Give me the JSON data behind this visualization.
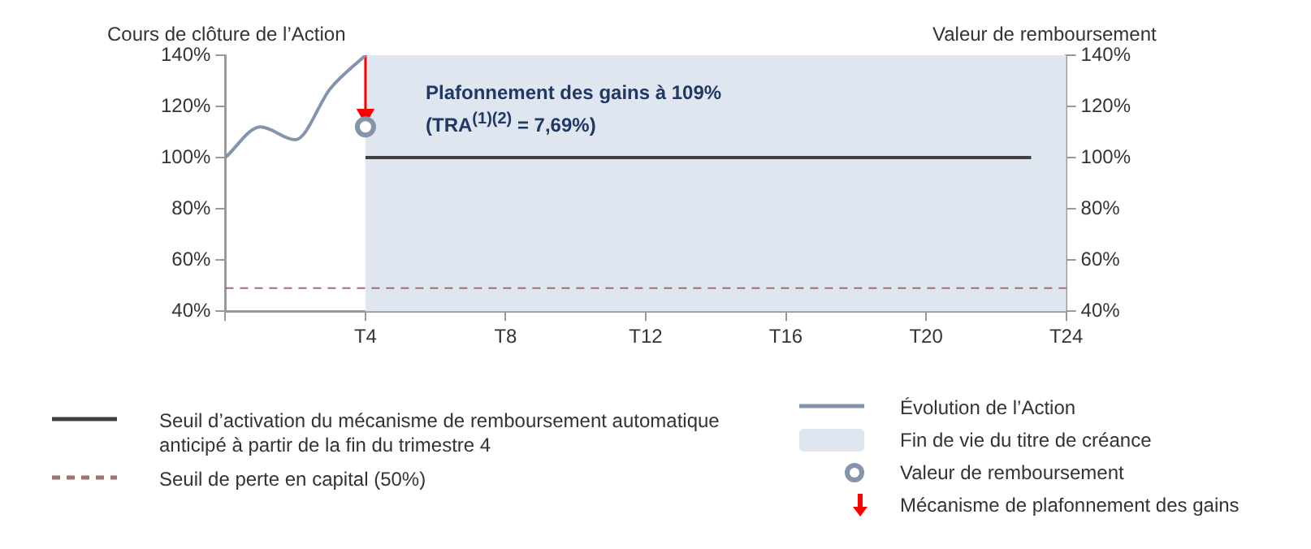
{
  "chart_data": {
    "type": "line",
    "ylabel": "Cours de clôture de l’Action",
    "y2label": "Valeur de remboursement",
    "annotations": [
      "Plafonnement des gains à 109%",
      "(TRA$^{(1)(2)}$ = 7,69%)"
    ],
    "categories": [
      null,
      null,
      null,
      null,
      "T4",
      null,
      null,
      null,
      "T8",
      null,
      null,
      null,
      "T12",
      null,
      null,
      null,
      "T16",
      null,
      null,
      null,
      "T20",
      null,
      null,
      null,
      "T24"
    ],
    "ylim": [
      40,
      140
    ],
    "yticks": [
      {
        "value": 40,
        "label": "40%"
      },
      {
        "value": 60,
        "label": "60%"
      },
      {
        "value": 80,
        "label": "80%"
      },
      {
        "value": 100,
        "label": "100%"
      },
      {
        "value": 120,
        "label": "120%"
      },
      {
        "value": 140,
        "label": "140%"
      }
    ],
    "y2lim": [
      40,
      140
    ],
    "y2ticks": [
      {
        "value": 40,
        "label": "40%"
      },
      {
        "value": 60,
        "label": "60%"
      },
      {
        "value": 80,
        "label": "80%"
      },
      {
        "value": 100,
        "label": "100%"
      },
      {
        "value": 120,
        "label": "120%"
      },
      {
        "value": 140,
        "label": "140%"
      }
    ],
    "grid": false,
    "legend": "bottom",
    "marker": "none",
    "series": [
      {
        "name": "Évolution de l’Action",
        "color": "#8495ab",
        "values": [
          100,
          112,
          107,
          127,
          140,
          null,
          null,
          null,
          null,
          null,
          null,
          null,
          null,
          null,
          null,
          null,
          null,
          null,
          null,
          null,
          null,
          null,
          null,
          null,
          null
        ]
      },
      {
        "name": "Seuil d’activation du mécanisme de remboursement automatique anticipé à partir de la fin du trimestre 4",
        "color": "#404040",
        "values": [
          null,
          null,
          null,
          null,
          100,
          100,
          100,
          100,
          100,
          100,
          100,
          100,
          100,
          100,
          100,
          100,
          100,
          100,
          100,
          100,
          100,
          100,
          100,
          100,
          null
        ]
      },
      {
        "name": "Valeur de remboursement",
        "type": "scatter",
        "marker": "circle",
        "color": "#8495ab",
        "x": [
          "T4"
        ],
        "values": [
          112
        ]
      },
      {
        "name": "Mécanisme de plafonnement des gains",
        "marker": "triangle",
        "color": "#ff0000",
        "x": [
          "T4",
          "T4"
        ],
        "values": [
          140,
          117
        ]
      }
    ],
    "ref_lines": [
      {
        "axis": "y",
        "value": 49,
        "label": "Seuil de perte en capital (50%)",
        "color": "#a07070",
        "line_style": "dashed"
      }
    ],
    "bands": [
      {
        "axis": "x",
        "from": "T4",
        "to": "T24",
        "label": "Fin de vie du titre de créance",
        "color": "#dfe6f0"
      }
    ]
  }
}
